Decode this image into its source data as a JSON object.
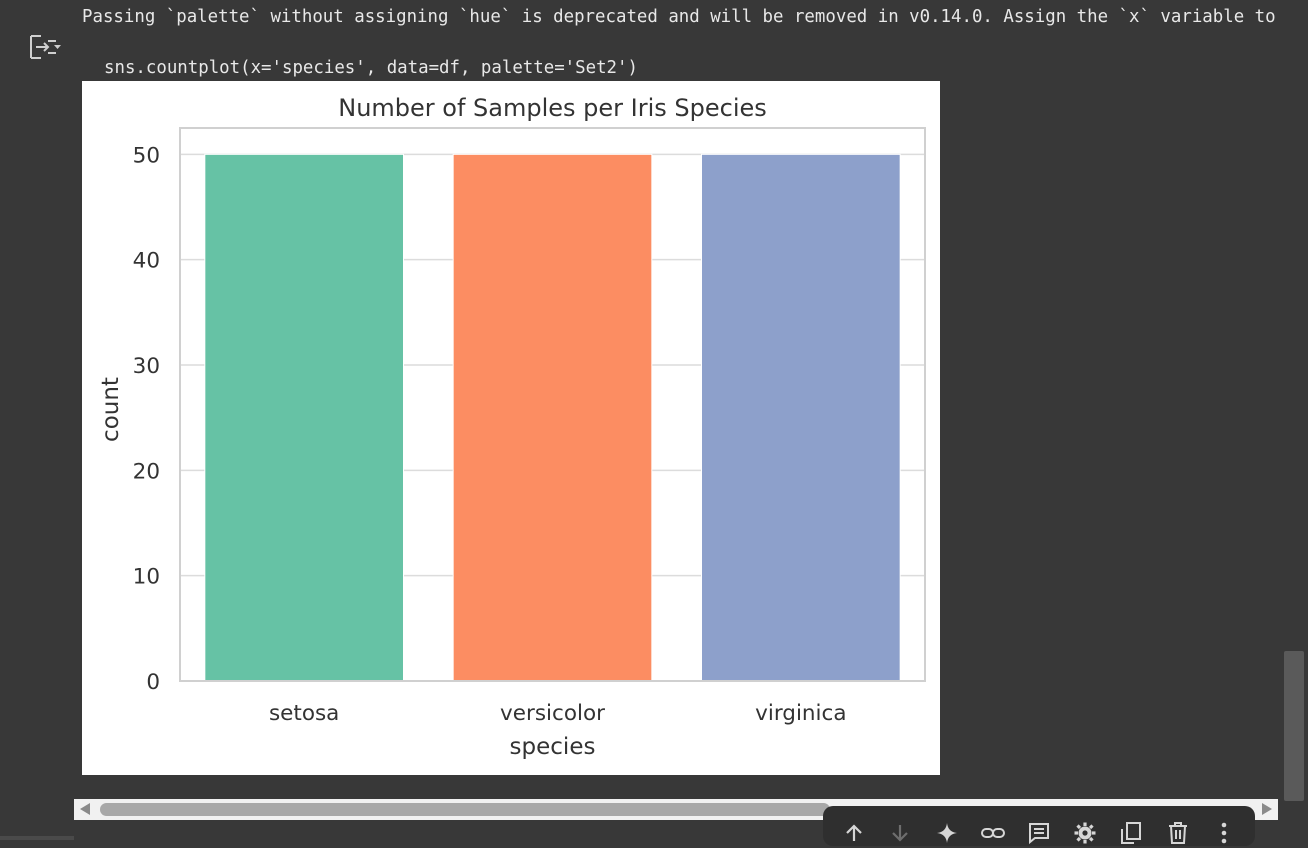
{
  "output": {
    "warning_text": "Passing `palette` without assigning `hue` is deprecated and will be removed in v0.14.0. Assign the `x` variable to `hue` and set `legend=False` for the same effect.",
    "code_text": "sns.countplot(x='species', data=df, palette='Set2')"
  },
  "chart_data": {
    "type": "bar",
    "title": "Number of Samples per Iris Species",
    "xlabel": "species",
    "ylabel": "count",
    "categories": [
      "setosa",
      "versicolor",
      "virginica"
    ],
    "values": [
      50,
      50,
      50
    ],
    "colors": [
      "#66c2a5",
      "#fc8d62",
      "#8da0cb"
    ],
    "ylim": [
      0,
      52.5
    ],
    "yticks": [
      0,
      10,
      20,
      30,
      40,
      50
    ],
    "grid": true,
    "style": "whitegrid"
  },
  "toolbar": {
    "icons": [
      "arrow-up-icon",
      "arrow-down-icon",
      "sparkle-icon",
      "link-icon",
      "comment-icon",
      "gear-icon",
      "mirror-cell-icon",
      "trash-icon",
      "more-vert-icon"
    ]
  },
  "theme": {
    "background": "#383838",
    "text": "#e8e8e8"
  }
}
